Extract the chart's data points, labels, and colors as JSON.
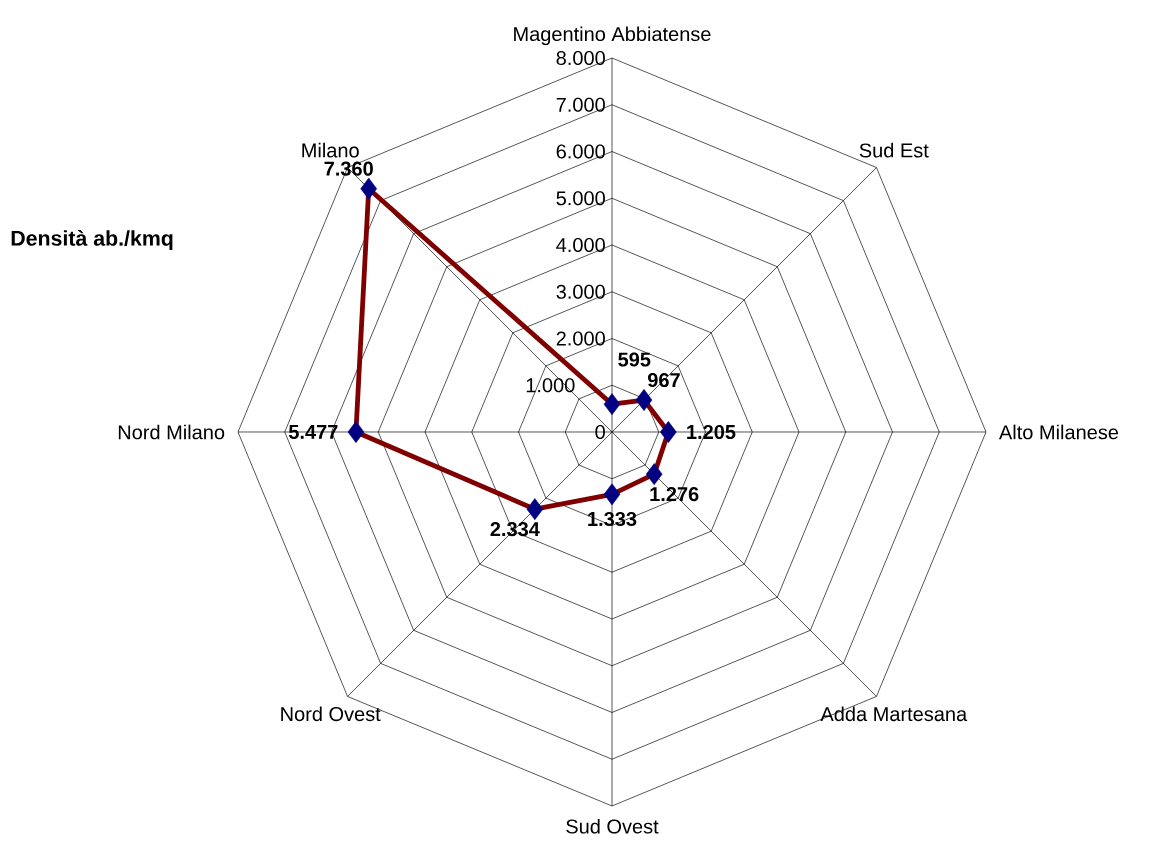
{
  "chart_data": {
    "type": "radar",
    "title": "Densità ab./kmq",
    "categories": [
      "Magentino Abbiatense",
      "Sud Est",
      "Alto Milanese",
      "Adda Martesana",
      "Sud Ovest",
      "Nord Ovest",
      "Nord Milano",
      "Milano"
    ],
    "series": [
      {
        "color": "#800000",
        "colors": [
          "#000080",
          "#000080",
          "#000080",
          "#000080",
          "#000080",
          "#000080",
          "#000080",
          "#000080"
        ],
        "values": [
          595,
          967,
          1205,
          1276,
          1333,
          2334,
          5477,
          7360
        ],
        "value_labels": [
          "595",
          "967",
          "1.205",
          "1.276",
          "1.333",
          "2.334",
          "5.477",
          "7.360"
        ]
      }
    ],
    "ylim": [
      0,
      8000
    ],
    "yticks": [
      0,
      {
        "value": 1000,
        "label": "1.000"
      },
      {
        "value": 2000,
        "label": "2.000"
      },
      {
        "value": 3000,
        "label": "3.000"
      },
      {
        "value": 4000,
        "label": "4.000"
      },
      {
        "value": 5000,
        "label": "5.000"
      },
      {
        "value": 6000,
        "label": "6.000"
      },
      {
        "value": 7000,
        "label": "7.000"
      },
      {
        "value": 8000,
        "label": "8.000"
      }
    ],
    "grid": true,
    "marker": "diamond"
  }
}
